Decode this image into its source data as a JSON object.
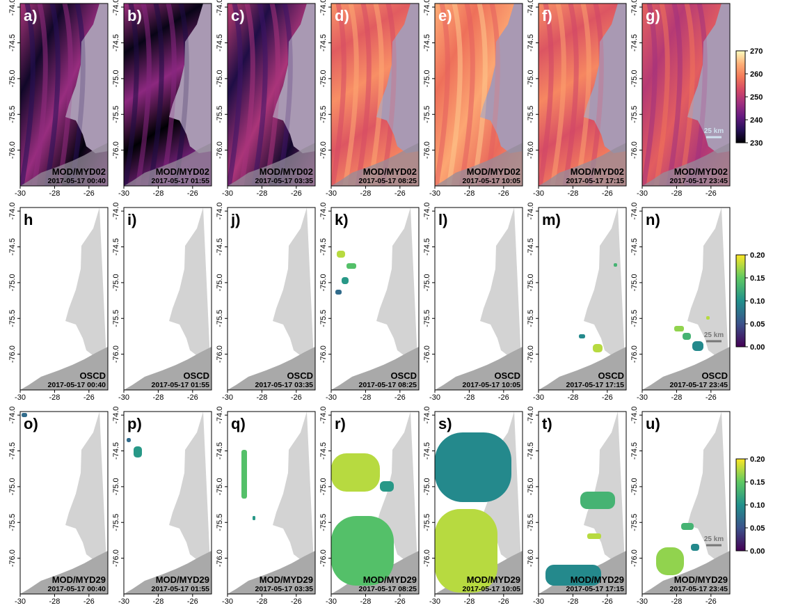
{
  "chart_data": {
    "type": "heatmap",
    "grid": {
      "columns": [
        "a-g",
        "h-n",
        "o-u"
      ],
      "rows": [
        "MOD/MYD02",
        "OSCD",
        "MOD/MYD29"
      ]
    },
    "xlim": [
      -30,
      -24.9
    ],
    "ylim": [
      -76.5,
      -73.95
    ],
    "x_ticks": [
      "-30",
      "-28",
      "-26"
    ],
    "y_ticks": [
      "-74.0",
      "-74.5",
      "-75.0",
      "-75.5",
      "-76.0"
    ],
    "timestamps": [
      "2017-05-17 00:40",
      "2017-05-17 01:55",
      "2017-05-17 03:35",
      "2017-05-17 08:25",
      "2017-05-17 10:05",
      "2017-05-17 17:15",
      "2017-05-17 23:45"
    ],
    "rows_data": [
      {
        "source": "MOD/MYD02",
        "panel_labels": [
          "a)",
          "b)",
          "c)",
          "d)",
          "e)",
          "f)",
          "g)"
        ],
        "colorbar": {
          "ticks": [
            "270",
            "260",
            "250",
            "240",
            "230"
          ],
          "min": 230,
          "max": 270,
          "scheme": "magma"
        },
        "panel_tone": [
          0.28,
          0.25,
          0.33,
          0.72,
          0.78,
          0.7,
          0.58
        ],
        "scale_bar": "25 km"
      },
      {
        "source": "OSCD",
        "panel_labels": [
          "h",
          "i)",
          "j)",
          "k)",
          "l)",
          "m)",
          "n)"
        ],
        "colorbar": {
          "ticks": [
            "0.20",
            "0.15",
            "0.10",
            "0.05",
            "0.00"
          ],
          "min": 0,
          "max": 0.2,
          "scheme": "viridis"
        },
        "scale_bar": "25 km"
      },
      {
        "source": "MOD/MYD29",
        "panel_labels": [
          "o)",
          "p)",
          "q)",
          "r)",
          "s)",
          "t)",
          "u)"
        ],
        "colorbar": {
          "ticks": [
            "0.20",
            "0.15",
            "0.10",
            "0.05",
            "0.00"
          ],
          "min": 0,
          "max": 0.2,
          "scheme": "viridis"
        },
        "scale_bar": "25 km"
      }
    ]
  }
}
